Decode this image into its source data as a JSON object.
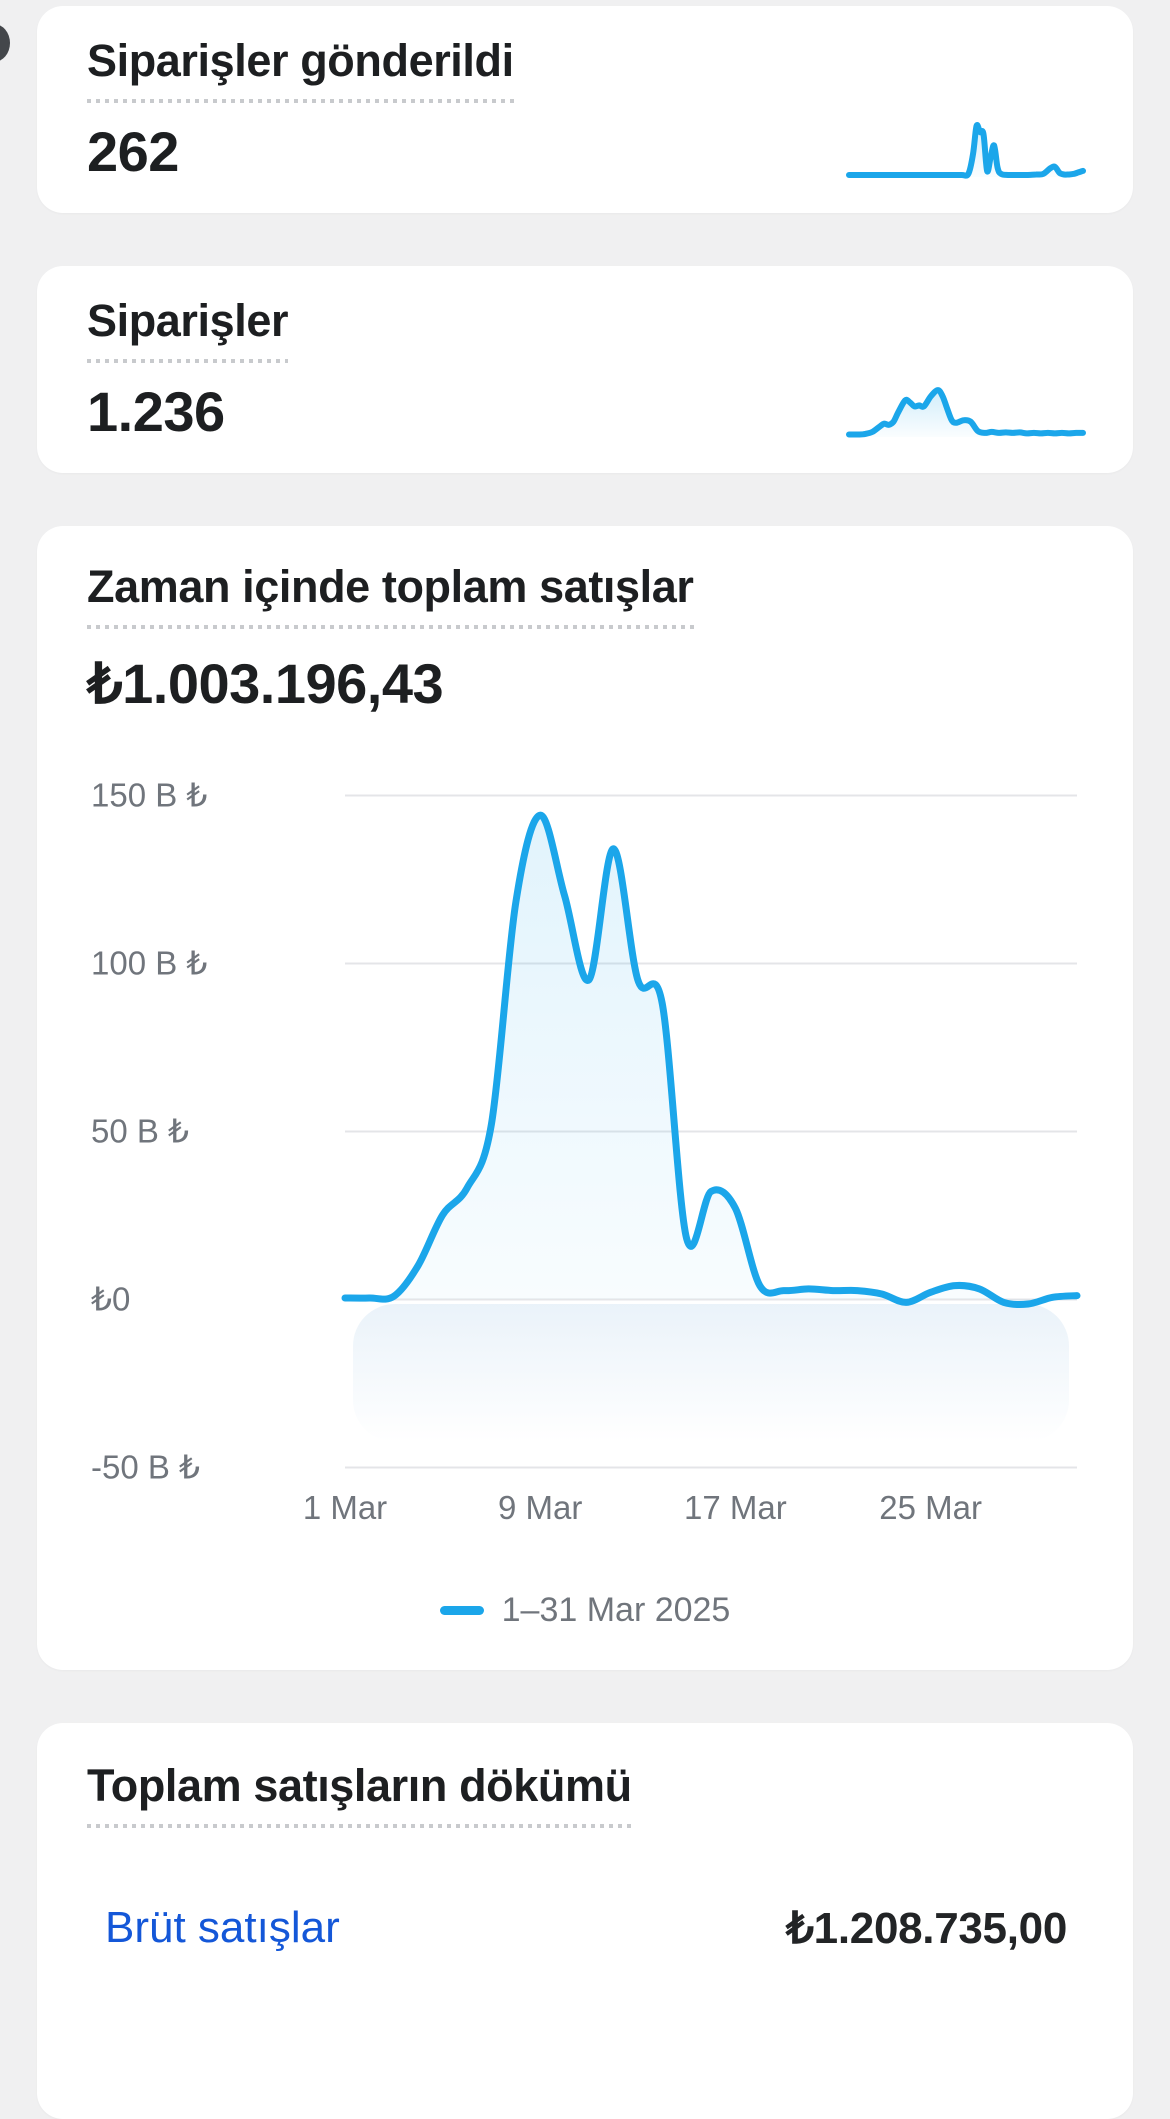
{
  "page": {
    "background": "#f0f0f1"
  },
  "colors": {
    "accent_blue": "#1ba6ea",
    "link_blue": "#1457d8",
    "text_dark": "#1d1f21",
    "text_gray": "#70757c",
    "gridline": "#e4e5e8",
    "dotted_underline": "#c8cacd"
  },
  "cards": {
    "orders_shipped": {
      "title": "Siparişler gönderildi",
      "value": "262"
    },
    "orders": {
      "title": "Siparişler",
      "value": "1.236"
    },
    "sales_over_time": {
      "title": "Zaman içinde toplam satışlar",
      "value": "₺1.003.196,43"
    },
    "sales_breakdown": {
      "title": "Toplam satışların dökümü",
      "rows": [
        {
          "label": "Brüt satışlar",
          "value": "₺1.208.735,00"
        }
      ]
    }
  },
  "chart_data": [
    {
      "id": "total_sales_over_time",
      "type": "area",
      "title": "Zaman içinde toplam satışlar",
      "total_label": "₺1.003.196,43",
      "x_unit": "day of March 2025",
      "x": [
        1,
        2,
        3,
        4,
        5,
        6,
        7,
        8,
        9,
        10,
        11,
        12,
        13,
        14,
        15,
        16,
        17,
        18,
        19,
        20,
        21,
        22,
        23,
        24,
        25,
        26,
        27,
        28,
        29,
        30,
        31
      ],
      "values_thousand_try": [
        0.3,
        0.3,
        0.8,
        10,
        25,
        33,
        52,
        118,
        144,
        120,
        95,
        134,
        95,
        88,
        18,
        32,
        27,
        4,
        2.5,
        3,
        2.5,
        2.5,
        1.5,
        -1,
        2,
        4,
        3,
        -1,
        -1.5,
        0.5,
        1
      ],
      "ylim": [
        -50,
        150
      ],
      "y_ticks": [
        {
          "value": 150,
          "label": "150 B ₺"
        },
        {
          "value": 100,
          "label": "100 B ₺"
        },
        {
          "value": 50,
          "label": "50 B ₺"
        },
        {
          "value": 0,
          "label": "₺0"
        },
        {
          "value": -50,
          "label": "-50 B ₺"
        }
      ],
      "x_ticks": [
        {
          "day": 1,
          "label": "1 Mar"
        },
        {
          "day": 9,
          "label": "9 Mar"
        },
        {
          "day": 17,
          "label": "17 Mar"
        },
        {
          "day": 25,
          "label": "25 Mar"
        }
      ],
      "grid": "horizontal",
      "legend": {
        "position": "bottom-center",
        "label": "1–31 Mar 2025",
        "series_color": "#1ba6ea"
      }
    },
    {
      "id": "orders_shipped_sparkline",
      "type": "area",
      "subtype": "sparkline",
      "units": "relative (x: % of range 1–31 Mar, y: % of max)",
      "points": [
        [
          0,
          4
        ],
        [
          20,
          4
        ],
        [
          40,
          4
        ],
        [
          48,
          4
        ],
        [
          51,
          6
        ],
        [
          53,
          45
        ],
        [
          54.5,
          100
        ],
        [
          56,
          88
        ],
        [
          57.5,
          84
        ],
        [
          59,
          12
        ],
        [
          60.5,
          38
        ],
        [
          62,
          62
        ],
        [
          63.5,
          18
        ],
        [
          65,
          6
        ],
        [
          68,
          4
        ],
        [
          72,
          4
        ],
        [
          76,
          4
        ],
        [
          80,
          5
        ],
        [
          83,
          6
        ],
        [
          86,
          17
        ],
        [
          88,
          20
        ],
        [
          90,
          8
        ],
        [
          92,
          5
        ],
        [
          94,
          5
        ],
        [
          96,
          6
        ],
        [
          98,
          9
        ],
        [
          100,
          12
        ]
      ]
    },
    {
      "id": "orders_sparkline",
      "type": "area",
      "subtype": "sparkline",
      "units": "relative (x: % of range 1–31 Mar, y: % of max)",
      "points": [
        [
          0,
          5
        ],
        [
          4,
          5
        ],
        [
          7,
          6
        ],
        [
          10,
          10
        ],
        [
          13,
          20
        ],
        [
          15,
          26
        ],
        [
          17,
          24
        ],
        [
          19,
          30
        ],
        [
          21,
          48
        ],
        [
          24,
          72
        ],
        [
          26,
          68
        ],
        [
          28,
          60
        ],
        [
          30,
          62
        ],
        [
          32,
          60
        ],
        [
          35,
          80
        ],
        [
          38,
          92
        ],
        [
          40,
          80
        ],
        [
          42,
          55
        ],
        [
          44,
          32
        ],
        [
          46,
          28
        ],
        [
          49,
          33
        ],
        [
          52,
          30
        ],
        [
          55,
          12
        ],
        [
          58,
          8
        ],
        [
          61,
          10
        ],
        [
          64,
          8
        ],
        [
          67,
          9
        ],
        [
          70,
          8
        ],
        [
          73,
          9
        ],
        [
          76,
          7
        ],
        [
          79,
          8
        ],
        [
          82,
          7
        ],
        [
          85,
          8
        ],
        [
          88,
          7
        ],
        [
          91,
          8
        ],
        [
          94,
          7
        ],
        [
          97,
          8
        ],
        [
          100,
          8
        ]
      ]
    }
  ]
}
